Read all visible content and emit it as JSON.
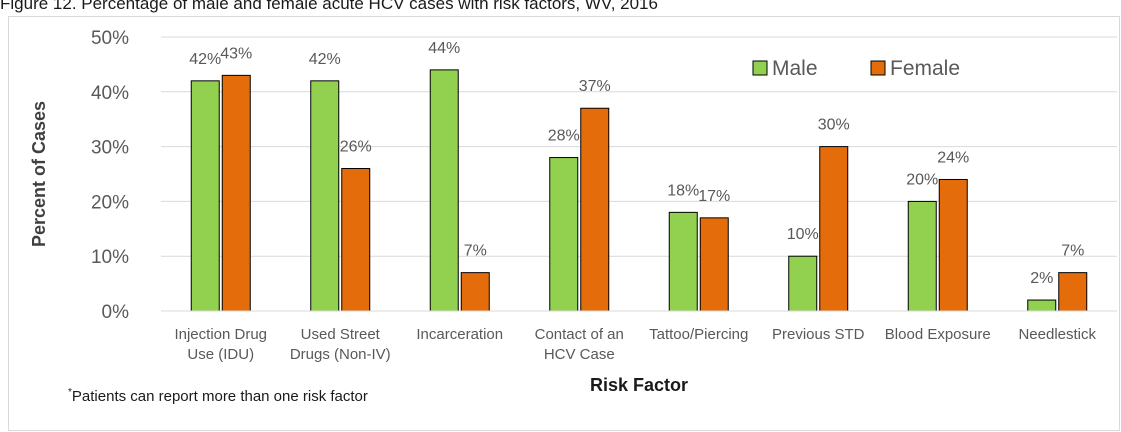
{
  "figure_title": "Figure 12. Percentage of male and female acute HCV cases with risk factors, WV, 2016",
  "footnote": {
    "marker": "*",
    "text": "Patients can report more than one risk factor"
  },
  "colors": {
    "male": "#92d050",
    "female": "#e46c0a",
    "bar_border": "#000000",
    "grid": "#d9d9d9",
    "text": "#595959",
    "axis_title": "#404040"
  },
  "chart_data": {
    "type": "bar",
    "title": "",
    "xlabel": "Risk Factor",
    "ylabel": "Percent of Cases",
    "ylim": [
      0,
      50
    ],
    "yticks": [
      "0%",
      "10%",
      "20%",
      "30%",
      "40%",
      "50%"
    ],
    "grid": true,
    "legend_position": "top-right",
    "categories": [
      [
        "Injection Drug",
        "Use (IDU)"
      ],
      [
        "Used Street",
        "Drugs (Non-IV)"
      ],
      [
        "Incarceration"
      ],
      [
        "Contact of an",
        "HCV Case"
      ],
      [
        "Tattoo/Piercing"
      ],
      [
        "Previous STD"
      ],
      [
        "Blood Exposure"
      ],
      [
        "Needlestick"
      ]
    ],
    "series": [
      {
        "name": "Male",
        "values": [
          42,
          42,
          44,
          28,
          18,
          10,
          20,
          2
        ],
        "labels": [
          "42%",
          "42%",
          "44%",
          "28%",
          "18%",
          "10%",
          "20%",
          "2%"
        ]
      },
      {
        "name": "Female",
        "values": [
          43,
          26,
          7,
          37,
          17,
          30,
          24,
          7
        ],
        "labels": [
          "43%",
          "26%",
          "7%",
          "37%",
          "17%",
          "30%",
          "24%",
          "7%"
        ]
      }
    ]
  }
}
